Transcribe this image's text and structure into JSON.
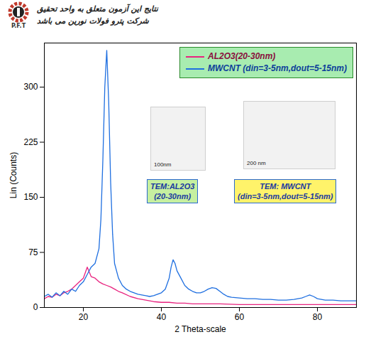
{
  "header": {
    "lines": [
      "نتایج این آزمون متعلق به واحد تحقیق",
      "شرکت پترو فولات نورین می باشد"
    ],
    "logo": "P.F.T"
  },
  "chart_data": {
    "type": "line",
    "x_label": "2 Theta-scale",
    "y_label": "Lin (Counts)",
    "xlim": [
      10,
      90
    ],
    "xticks": [
      20,
      40,
      60,
      80
    ],
    "ylim": [
      0,
      360
    ],
    "yticks": [
      0,
      75,
      150,
      225,
      300
    ],
    "grid": false,
    "legend": "top-right",
    "series": [
      {
        "name": "AL2O3(20-30nm)",
        "color": "#e8237f",
        "x": [
          10,
          11,
          12,
          13,
          14,
          15,
          16,
          17,
          18,
          19,
          20,
          21,
          22,
          23,
          24,
          25,
          26,
          27,
          28,
          29,
          30,
          32,
          34,
          36,
          38,
          40,
          42,
          44,
          46,
          48,
          50,
          55,
          60,
          65,
          70,
          75,
          80,
          85,
          90
        ],
        "values": [
          12,
          15,
          14,
          18,
          16,
          20,
          22,
          25,
          30,
          35,
          40,
          55,
          42,
          40,
          35,
          32,
          30,
          28,
          25,
          22,
          20,
          15,
          12,
          10,
          8,
          7,
          7,
          6,
          6,
          5,
          5,
          5,
          4,
          4,
          4,
          4,
          4,
          4,
          4
        ]
      },
      {
        "name": "MWCNT (din=3-5nm,dout=5-15nm)",
        "color": "#1f6fe0",
        "x": [
          10,
          11,
          12,
          13,
          14,
          15,
          16,
          17,
          18,
          19,
          20,
          21,
          22,
          23,
          24,
          24.5,
          25,
          25.5,
          26,
          26.5,
          27,
          27.5,
          28,
          29,
          30,
          31,
          32,
          33,
          34,
          35,
          36,
          37,
          38,
          39,
          40,
          41,
          42,
          42.5,
          43,
          43.5,
          44,
          45,
          46,
          47,
          48,
          49,
          50,
          51,
          52,
          53,
          54,
          55,
          56,
          57,
          58,
          60,
          62,
          64,
          66,
          68,
          70,
          72,
          74,
          76,
          77,
          78,
          79,
          80,
          82,
          84,
          86,
          88,
          90
        ],
        "values": [
          15,
          18,
          14,
          20,
          16,
          22,
          18,
          25,
          22,
          30,
          35,
          45,
          55,
          60,
          80,
          120,
          200,
          300,
          350,
          280,
          170,
          100,
          60,
          40,
          30,
          25,
          22,
          20,
          18,
          17,
          16,
          15,
          16,
          18,
          20,
          25,
          40,
          55,
          65,
          60,
          50,
          40,
          30,
          25,
          22,
          20,
          20,
          22,
          25,
          27,
          26,
          22,
          18,
          15,
          14,
          13,
          12,
          12,
          11,
          11,
          10,
          10,
          11,
          13,
          15,
          17,
          15,
          12,
          10,
          10,
          9,
          9,
          9
        ]
      }
    ],
    "annotations": {
      "tem_al2o3": {
        "lines": [
          "TEM:AL2O3",
          "(20-30nm)"
        ],
        "scale_bar": "100nm"
      },
      "tem_mwcnt": {
        "lines": [
          "TEM: MWCNT",
          "(din=3-5nm,dout=5-15nm)"
        ],
        "scale_bar": "200 nm"
      }
    }
  }
}
